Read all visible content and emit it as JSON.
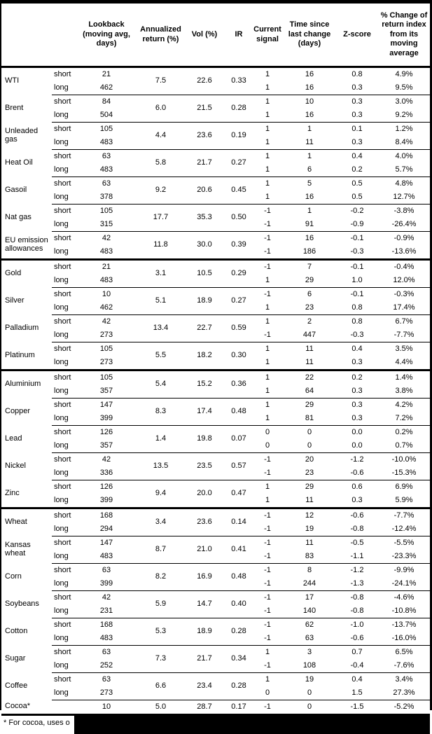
{
  "colors": {
    "border": "#000000",
    "background": "#ffffff",
    "redaction": "#000000",
    "text": "#000000"
  },
  "table": {
    "columns": [
      {
        "id": "name",
        "label": ""
      },
      {
        "id": "pos",
        "label": ""
      },
      {
        "id": "lookback",
        "label": "Lookback (moving avg, days)"
      },
      {
        "id": "annualized_return",
        "label": "Annualized return (%)"
      },
      {
        "id": "vol",
        "label": "Vol (%)"
      },
      {
        "id": "ir",
        "label": "IR"
      },
      {
        "id": "signal",
        "label": "Current signal"
      },
      {
        "id": "time_since",
        "label": "Time since last change (days)"
      },
      {
        "id": "z_score",
        "label": "Z-score"
      },
      {
        "id": "pct_change",
        "label": "% Change of return index from its moving average"
      }
    ],
    "commodities": [
      {
        "name": "WTI",
        "section_start": false,
        "annualized_return": "7.5",
        "vol": "22.6",
        "ir": "0.33",
        "rows": [
          {
            "pos": "short",
            "lookback": "21",
            "signal": "1",
            "time_since": "16",
            "z_score": "0.8",
            "pct_change": "4.9%"
          },
          {
            "pos": "long",
            "lookback": "462",
            "signal": "1",
            "time_since": "16",
            "z_score": "0.3",
            "pct_change": "9.5%"
          }
        ]
      },
      {
        "name": "Brent",
        "section_start": false,
        "annualized_return": "6.0",
        "vol": "21.5",
        "ir": "0.28",
        "rows": [
          {
            "pos": "short",
            "lookback": "84",
            "signal": "1",
            "time_since": "10",
            "z_score": "0.3",
            "pct_change": "3.0%"
          },
          {
            "pos": "long",
            "lookback": "504",
            "signal": "1",
            "time_since": "16",
            "z_score": "0.3",
            "pct_change": "9.2%"
          }
        ]
      },
      {
        "name": "Unleaded gas",
        "section_start": false,
        "annualized_return": "4.4",
        "vol": "23.6",
        "ir": "0.19",
        "rows": [
          {
            "pos": "short",
            "lookback": "105",
            "signal": "1",
            "time_since": "1",
            "z_score": "0.1",
            "pct_change": "1.2%"
          },
          {
            "pos": "long",
            "lookback": "483",
            "signal": "1",
            "time_since": "11",
            "z_score": "0.3",
            "pct_change": "8.4%"
          }
        ]
      },
      {
        "name": "Heat Oil",
        "section_start": false,
        "annualized_return": "5.8",
        "vol": "21.7",
        "ir": "0.27",
        "rows": [
          {
            "pos": "short",
            "lookback": "63",
            "signal": "1",
            "time_since": "1",
            "z_score": "0.4",
            "pct_change": "4.0%"
          },
          {
            "pos": "long",
            "lookback": "483",
            "signal": "1",
            "time_since": "6",
            "z_score": "0.2",
            "pct_change": "5.7%"
          }
        ]
      },
      {
        "name": "Gasoil",
        "section_start": false,
        "annualized_return": "9.2",
        "vol": "20.6",
        "ir": "0.45",
        "rows": [
          {
            "pos": "short",
            "lookback": "63",
            "signal": "1",
            "time_since": "5",
            "z_score": "0.5",
            "pct_change": "4.8%"
          },
          {
            "pos": "long",
            "lookback": "378",
            "signal": "1",
            "time_since": "16",
            "z_score": "0.5",
            "pct_change": "12.7%"
          }
        ]
      },
      {
        "name": "Nat gas",
        "section_start": false,
        "annualized_return": "17.7",
        "vol": "35.3",
        "ir": "0.50",
        "rows": [
          {
            "pos": "short",
            "lookback": "105",
            "signal": "-1",
            "time_since": "1",
            "z_score": "-0.2",
            "pct_change": "-3.8%"
          },
          {
            "pos": "long",
            "lookback": "315",
            "signal": "-1",
            "time_since": "91",
            "z_score": "-0.9",
            "pct_change": "-26.4%"
          }
        ]
      },
      {
        "name": "EU emission allowances",
        "section_start": false,
        "annualized_return": "11.8",
        "vol": "30.0",
        "ir": "0.39",
        "rows": [
          {
            "pos": "short",
            "lookback": "42",
            "signal": "-1",
            "time_since": "16",
            "z_score": "-0.1",
            "pct_change": "-0.9%"
          },
          {
            "pos": "long",
            "lookback": "483",
            "signal": "-1",
            "time_since": "186",
            "z_score": "-0.3",
            "pct_change": "-13.6%"
          }
        ]
      },
      {
        "name": "Gold",
        "section_start": true,
        "annualized_return": "3.1",
        "vol": "10.5",
        "ir": "0.29",
        "rows": [
          {
            "pos": "short",
            "lookback": "21",
            "signal": "-1",
            "time_since": "7",
            "z_score": "-0.1",
            "pct_change": "-0.4%"
          },
          {
            "pos": "long",
            "lookback": "483",
            "signal": "1",
            "time_since": "29",
            "z_score": "1.0",
            "pct_change": "12.0%"
          }
        ]
      },
      {
        "name": "Silver",
        "section_start": false,
        "annualized_return": "5.1",
        "vol": "18.9",
        "ir": "0.27",
        "rows": [
          {
            "pos": "short",
            "lookback": "10",
            "signal": "-1",
            "time_since": "6",
            "z_score": "-0.1",
            "pct_change": "-0.3%"
          },
          {
            "pos": "long",
            "lookback": "462",
            "signal": "1",
            "time_since": "23",
            "z_score": "0.8",
            "pct_change": "17.4%"
          }
        ]
      },
      {
        "name": "Palladium",
        "section_start": false,
        "annualized_return": "13.4",
        "vol": "22.7",
        "ir": "0.59",
        "rows": [
          {
            "pos": "short",
            "lookback": "42",
            "signal": "1",
            "time_since": "2",
            "z_score": "0.8",
            "pct_change": "6.7%"
          },
          {
            "pos": "long",
            "lookback": "273",
            "signal": "-1",
            "time_since": "447",
            "z_score": "-0.3",
            "pct_change": "-7.7%"
          }
        ]
      },
      {
        "name": "Platinum",
        "section_start": false,
        "annualized_return": "5.5",
        "vol": "18.2",
        "ir": "0.30",
        "rows": [
          {
            "pos": "short",
            "lookback": "105",
            "signal": "1",
            "time_since": "11",
            "z_score": "0.4",
            "pct_change": "3.5%"
          },
          {
            "pos": "long",
            "lookback": "273",
            "signal": "1",
            "time_since": "11",
            "z_score": "0.3",
            "pct_change": "4.4%"
          }
        ]
      },
      {
        "name": "Aluminium",
        "section_start": true,
        "annualized_return": "5.4",
        "vol": "15.2",
        "ir": "0.36",
        "rows": [
          {
            "pos": "short",
            "lookback": "105",
            "signal": "1",
            "time_since": "22",
            "z_score": "0.2",
            "pct_change": "1.4%"
          },
          {
            "pos": "long",
            "lookback": "357",
            "signal": "1",
            "time_since": "64",
            "z_score": "0.3",
            "pct_change": "3.8%"
          }
        ]
      },
      {
        "name": "Copper",
        "section_start": false,
        "annualized_return": "8.3",
        "vol": "17.4",
        "ir": "0.48",
        "rows": [
          {
            "pos": "short",
            "lookback": "147",
            "signal": "1",
            "time_since": "29",
            "z_score": "0.3",
            "pct_change": "4.2%"
          },
          {
            "pos": "long",
            "lookback": "399",
            "signal": "1",
            "time_since": "81",
            "z_score": "0.3",
            "pct_change": "7.2%"
          }
        ]
      },
      {
        "name": "Lead",
        "section_start": false,
        "annualized_return": "1.4",
        "vol": "19.8",
        "ir": "0.07",
        "rows": [
          {
            "pos": "short",
            "lookback": "126",
            "signal": "0",
            "time_since": "0",
            "z_score": "0.0",
            "pct_change": "0.2%"
          },
          {
            "pos": "long",
            "lookback": "357",
            "signal": "0",
            "time_since": "0",
            "z_score": "0.0",
            "pct_change": "0.7%"
          }
        ]
      },
      {
        "name": "Nickel",
        "section_start": false,
        "annualized_return": "13.5",
        "vol": "23.5",
        "ir": "0.57",
        "rows": [
          {
            "pos": "short",
            "lookback": "42",
            "signal": "-1",
            "time_since": "20",
            "z_score": "-1.2",
            "pct_change": "-10.0%"
          },
          {
            "pos": "long",
            "lookback": "336",
            "signal": "-1",
            "time_since": "23",
            "z_score": "-0.6",
            "pct_change": "-15.3%"
          }
        ]
      },
      {
        "name": "Zinc",
        "section_start": false,
        "annualized_return": "9.4",
        "vol": "20.0",
        "ir": "0.47",
        "rows": [
          {
            "pos": "short",
            "lookback": "126",
            "signal": "1",
            "time_since": "29",
            "z_score": "0.6",
            "pct_change": "6.9%"
          },
          {
            "pos": "long",
            "lookback": "399",
            "signal": "1",
            "time_since": "11",
            "z_score": "0.3",
            "pct_change": "5.9%"
          }
        ]
      },
      {
        "name": "Wheat",
        "section_start": true,
        "annualized_return": "3.4",
        "vol": "23.6",
        "ir": "0.14",
        "rows": [
          {
            "pos": "short",
            "lookback": "168",
            "signal": "-1",
            "time_since": "12",
            "z_score": "-0.6",
            "pct_change": "-7.7%"
          },
          {
            "pos": "long",
            "lookback": "294",
            "signal": "-1",
            "time_since": "19",
            "z_score": "-0.8",
            "pct_change": "-12.4%"
          }
        ]
      },
      {
        "name": "Kansas wheat",
        "section_start": false,
        "annualized_return": "8.7",
        "vol": "21.0",
        "ir": "0.41",
        "rows": [
          {
            "pos": "short",
            "lookback": "147",
            "signal": "-1",
            "time_since": "11",
            "z_score": "-0.5",
            "pct_change": "-5.5%"
          },
          {
            "pos": "long",
            "lookback": "483",
            "signal": "-1",
            "time_since": "83",
            "z_score": "-1.1",
            "pct_change": "-23.3%"
          }
        ]
      },
      {
        "name": "Corn",
        "section_start": false,
        "annualized_return": "8.2",
        "vol": "16.9",
        "ir": "0.48",
        "rows": [
          {
            "pos": "short",
            "lookback": "63",
            "signal": "-1",
            "time_since": "8",
            "z_score": "-1.2",
            "pct_change": "-9.9%"
          },
          {
            "pos": "long",
            "lookback": "399",
            "signal": "-1",
            "time_since": "244",
            "z_score": "-1.3",
            "pct_change": "-24.1%"
          }
        ]
      },
      {
        "name": "Soybeans",
        "section_start": false,
        "annualized_return": "5.9",
        "vol": "14.7",
        "ir": "0.40",
        "rows": [
          {
            "pos": "short",
            "lookback": "42",
            "signal": "-1",
            "time_since": "17",
            "z_score": "-0.8",
            "pct_change": "-4.6%"
          },
          {
            "pos": "long",
            "lookback": "231",
            "signal": "-1",
            "time_since": "140",
            "z_score": "-0.8",
            "pct_change": "-10.8%"
          }
        ]
      },
      {
        "name": "Cotton",
        "section_start": false,
        "annualized_return": "5.3",
        "vol": "18.9",
        "ir": "0.28",
        "rows": [
          {
            "pos": "short",
            "lookback": "168",
            "signal": "-1",
            "time_since": "62",
            "z_score": "-1.0",
            "pct_change": "-13.7%"
          },
          {
            "pos": "long",
            "lookback": "483",
            "signal": "-1",
            "time_since": "63",
            "z_score": "-0.6",
            "pct_change": "-16.0%"
          }
        ]
      },
      {
        "name": "Sugar",
        "section_start": false,
        "annualized_return": "7.3",
        "vol": "21.7",
        "ir": "0.34",
        "rows": [
          {
            "pos": "short",
            "lookback": "63",
            "signal": "1",
            "time_since": "3",
            "z_score": "0.7",
            "pct_change": "6.5%"
          },
          {
            "pos": "long",
            "lookback": "252",
            "signal": "-1",
            "time_since": "108",
            "z_score": "-0.4",
            "pct_change": "-7.6%"
          }
        ]
      },
      {
        "name": "Coffee",
        "section_start": false,
        "annualized_return": "6.6",
        "vol": "23.4",
        "ir": "0.28",
        "rows": [
          {
            "pos": "short",
            "lookback": "63",
            "signal": "1",
            "time_since": "19",
            "z_score": "0.4",
            "pct_change": "3.4%"
          },
          {
            "pos": "long",
            "lookback": "273",
            "signal": "0",
            "time_since": "0",
            "z_score": "1.5",
            "pct_change": "27.3%"
          }
        ]
      },
      {
        "name": "Cocoa*",
        "section_start": false,
        "annualized_return": "5.0",
        "vol": "28.7",
        "ir": "0.17",
        "rows": [
          {
            "pos": "",
            "lookback": "10",
            "signal": "-1",
            "time_since": "0",
            "z_score": "-1.5",
            "pct_change": "-5.2%"
          }
        ]
      }
    ]
  },
  "footnote": {
    "visible_text": "* For cocoa, uses o",
    "redacted": true
  }
}
